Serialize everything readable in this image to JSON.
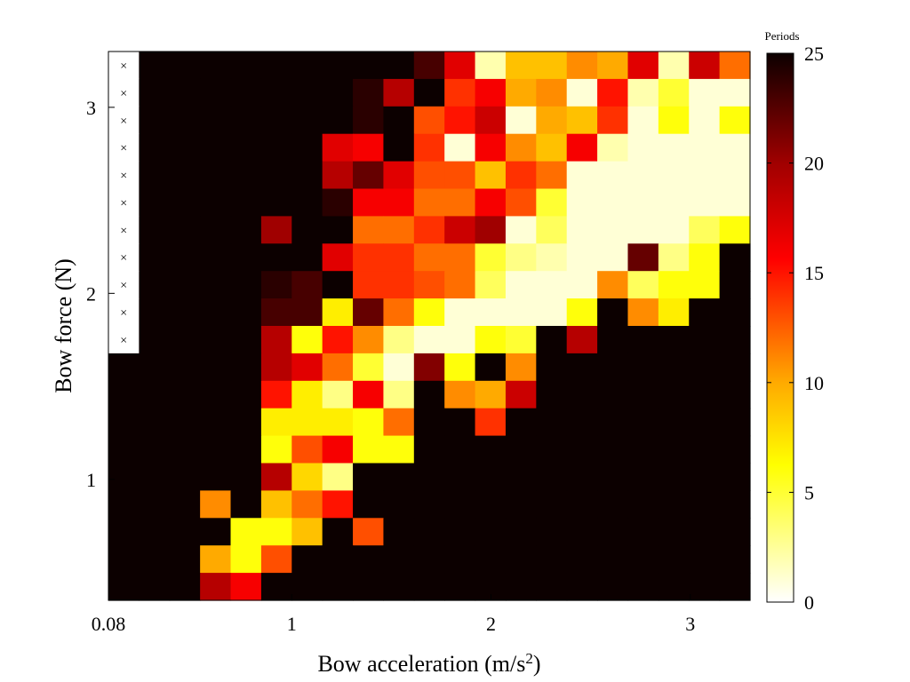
{
  "chart_data": {
    "type": "heatmap",
    "xlabel": "Bow acceleration (m/s²)",
    "ylabel": "Bow force (N)",
    "xlim": [
      0.08,
      3.3
    ],
    "ylim": [
      0.35,
      3.3
    ],
    "x_ticks": [
      {
        "value": 0.08,
        "label": "0.08"
      },
      {
        "value": 1,
        "label": "1"
      },
      {
        "value": 2,
        "label": "2"
      },
      {
        "value": 3,
        "label": "3"
      }
    ],
    "y_ticks": [
      {
        "value": 1,
        "label": "1"
      },
      {
        "value": 2,
        "label": "2"
      },
      {
        "value": 3,
        "label": "3"
      }
    ],
    "grid_x_start": 0.08,
    "grid_x_step": 0.1615,
    "grid_y_start": 3.3,
    "grid_y_step": 0.1474,
    "colorbar": {
      "title": "Periods",
      "min": 0,
      "max": 25,
      "ticks": [
        0,
        5,
        10,
        15,
        20,
        25
      ],
      "colormap": "hot (reversed)"
    },
    "grid": false,
    "marked_cells_note": "white cells with × at lowest acceleration (forces > ~1.5 N)",
    "marker_label": "×",
    "nan_color": "#ffffff",
    "cells": [
      [
        null,
        25,
        25,
        25,
        25,
        25,
        25,
        25,
        25,
        25,
        23,
        17,
        2,
        9,
        9,
        11,
        10,
        17,
        2,
        18,
        12
      ],
      [
        null,
        25,
        25,
        25,
        25,
        25,
        25,
        25,
        24,
        19,
        25,
        14,
        16,
        10,
        11,
        1,
        15,
        2,
        5,
        1,
        1
      ],
      [
        null,
        25,
        25,
        25,
        25,
        25,
        25,
        25,
        24,
        25,
        13,
        15,
        18,
        1,
        10,
        9,
        14,
        1,
        6,
        1,
        6
      ],
      [
        null,
        25,
        25,
        25,
        25,
        25,
        25,
        17,
        16,
        25,
        14,
        1,
        16,
        11,
        9,
        16,
        2,
        1,
        1,
        1,
        1
      ],
      [
        null,
        25,
        25,
        25,
        25,
        25,
        25,
        19,
        22,
        17,
        13,
        13,
        9,
        14,
        12,
        1,
        1,
        1,
        1,
        1,
        1
      ],
      [
        null,
        25,
        25,
        25,
        25,
        25,
        25,
        24,
        16,
        16,
        12,
        12,
        16,
        13,
        5,
        1,
        1,
        1,
        1,
        1,
        1
      ],
      [
        null,
        25,
        25,
        25,
        25,
        20,
        25,
        25,
        12,
        12,
        14,
        18,
        20,
        1,
        4,
        1,
        1,
        1,
        1,
        4,
        6
      ],
      [
        null,
        25,
        25,
        25,
        25,
        25,
        25,
        17,
        14,
        14,
        12,
        12,
        5,
        3,
        2,
        1,
        1,
        22,
        3,
        6,
        25
      ],
      [
        null,
        25,
        25,
        25,
        25,
        24,
        23,
        25,
        14,
        14,
        13,
        12,
        4,
        1,
        1,
        1,
        11,
        4,
        6,
        6,
        25
      ],
      [
        null,
        25,
        25,
        25,
        25,
        23,
        23,
        7,
        22,
        12,
        6,
        1,
        1,
        1,
        1,
        6,
        25,
        11,
        7,
        25,
        25
      ],
      [
        null,
        25,
        25,
        25,
        25,
        19,
        6,
        15,
        11,
        3,
        1,
        1,
        6,
        5,
        25,
        19,
        25,
        25,
        25,
        25,
        25
      ],
      [
        25,
        25,
        25,
        25,
        25,
        19,
        17,
        12,
        5,
        1,
        21,
        6,
        25,
        11,
        25,
        25,
        25,
        25,
        25,
        25,
        25
      ],
      [
        25,
        25,
        25,
        25,
        25,
        15,
        7,
        3,
        16,
        3,
        25,
        11,
        10,
        18,
        25,
        25,
        25,
        25,
        25,
        25,
        25
      ],
      [
        25,
        25,
        25,
        25,
        25,
        7,
        7,
        7,
        6,
        12,
        25,
        25,
        14,
        25,
        25,
        25,
        25,
        25,
        25,
        25,
        25
      ],
      [
        25,
        25,
        25,
        25,
        25,
        6,
        13,
        16,
        6,
        6,
        25,
        25,
        25,
        25,
        25,
        25,
        25,
        25,
        25,
        25,
        25
      ],
      [
        25,
        25,
        25,
        25,
        25,
        19,
        8,
        3,
        25,
        25,
        25,
        25,
        25,
        25,
        25,
        25,
        25,
        25,
        25,
        25,
        25
      ],
      [
        25,
        25,
        25,
        11,
        25,
        9,
        12,
        15,
        25,
        25,
        25,
        25,
        25,
        25,
        25,
        25,
        25,
        25,
        25,
        25,
        25
      ],
      [
        25,
        25,
        25,
        25,
        6,
        6,
        9,
        25,
        13,
        25,
        25,
        25,
        25,
        25,
        25,
        25,
        25,
        25,
        25,
        25,
        25
      ],
      [
        25,
        25,
        25,
        10,
        6,
        13,
        25,
        25,
        25,
        25,
        25,
        25,
        25,
        25,
        25,
        25,
        25,
        25,
        25,
        25,
        25
      ],
      [
        25,
        25,
        25,
        19,
        16,
        25,
        25,
        25,
        25,
        25,
        25,
        25,
        25,
        25,
        25,
        25,
        25,
        25,
        25,
        25,
        25
      ]
    ]
  }
}
